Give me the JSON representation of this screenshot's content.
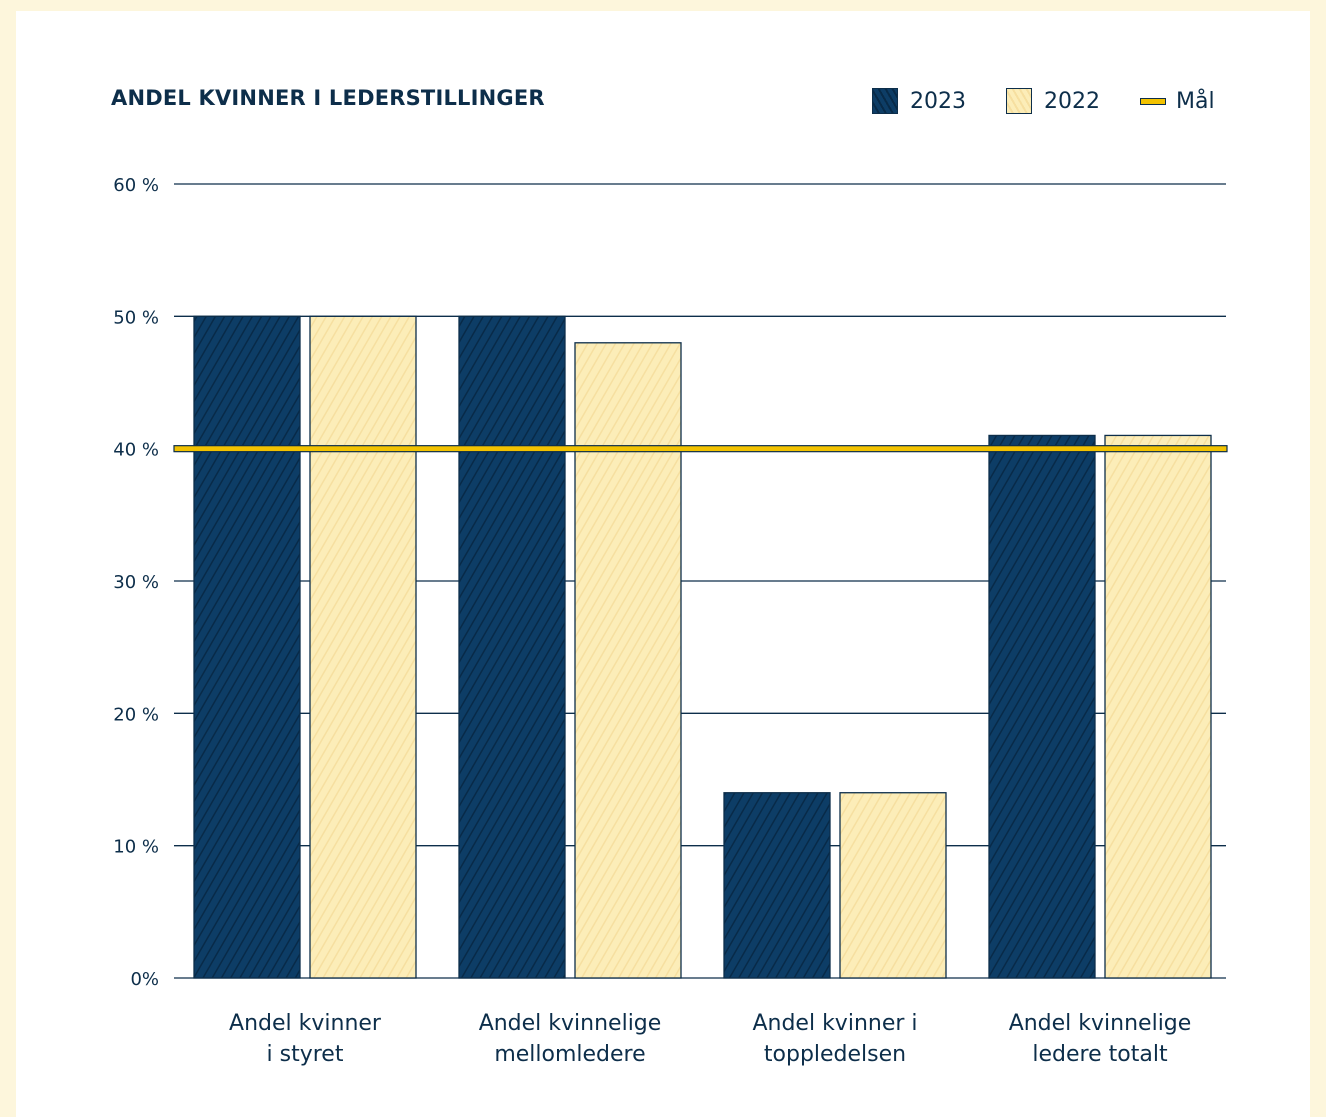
{
  "colors": {
    "page_background": "#fdf6dc",
    "card_background": "#ffffff",
    "text": "#0d2e4a",
    "series_2023": "#0d3d66",
    "series_2022": "#fcedb8",
    "goal_line": "#f2c200",
    "grid": "#0d2e4a"
  },
  "legend": {
    "items": [
      {
        "label": "2023",
        "style": "dark-hatched-swatch"
      },
      {
        "label": "2022",
        "style": "light-hatched-swatch"
      },
      {
        "label": "Mål",
        "style": "yellow-line"
      }
    ]
  },
  "chart_data": {
    "type": "bar",
    "title": "ANDEL KVINNER I LEDERSTILLINGER",
    "categories": [
      [
        "Andel kvinner",
        "i styret"
      ],
      [
        "Andel kvinnelige",
        "mellomledere"
      ],
      [
        "Andel kvinner i",
        "toppledelsen"
      ],
      [
        "Andel kvinnelige",
        "ledere totalt"
      ]
    ],
    "series": [
      {
        "name": "2023",
        "values": [
          50,
          50,
          14,
          41
        ]
      },
      {
        "name": "2022",
        "values": [
          50,
          48,
          14,
          41
        ]
      }
    ],
    "target": {
      "name": "Mål",
      "value": 40
    },
    "ylim": [
      0,
      60
    ],
    "yticks": [
      0,
      10,
      20,
      30,
      40,
      50,
      60
    ],
    "ytick_labels": [
      "0%",
      "10 %",
      "20 %",
      "30 %",
      "40 %",
      "50 %",
      "60 %"
    ],
    "xlabel": "",
    "ylabel": "",
    "grid": true,
    "legend_position": "top-right"
  }
}
